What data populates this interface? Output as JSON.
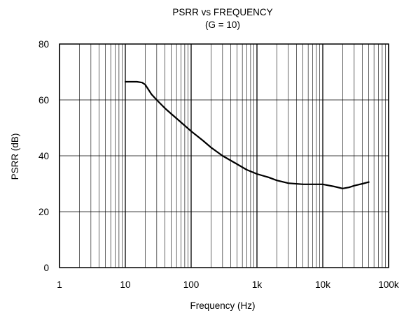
{
  "chart_data": {
    "type": "line",
    "title": "PSRR vs FREQUENCY",
    "subtitle": "(G = 10)",
    "xlabel": "Frequency (Hz)",
    "ylabel": "PSRR (dB)",
    "x_scale": "log",
    "xlim": [
      1,
      100000
    ],
    "ylim": [
      0,
      80
    ],
    "x_ticks": [
      {
        "value": 1,
        "label": "1"
      },
      {
        "value": 10,
        "label": "10"
      },
      {
        "value": 100,
        "label": "100"
      },
      {
        "value": 1000,
        "label": "1k"
      },
      {
        "value": 10000,
        "label": "10k"
      },
      {
        "value": 100000,
        "label": "100k"
      }
    ],
    "y_ticks": [
      {
        "value": 0,
        "label": "0"
      },
      {
        "value": 20,
        "label": "20"
      },
      {
        "value": 40,
        "label": "40"
      },
      {
        "value": 60,
        "label": "60"
      },
      {
        "value": 80,
        "label": "80"
      }
    ],
    "grid": true,
    "series": [
      {
        "x": [
          10,
          15,
          18,
          20,
          22,
          25,
          30,
          40,
          50,
          70,
          100,
          150,
          200,
          300,
          500,
          700,
          1000,
          1500,
          2000,
          3000,
          5000,
          7000,
          10000,
          15000,
          20000,
          25000,
          30000,
          40000,
          50000
        ],
        "y": [
          66.5,
          66.5,
          66.2,
          65.5,
          64,
          62,
          60,
          57,
          55,
          52,
          48.8,
          45.5,
          43,
          40,
          37,
          35,
          33.5,
          32.3,
          31.2,
          30.2,
          29.8,
          29.8,
          29.8,
          29,
          28.3,
          28.7,
          29.3,
          30,
          30.6
        ]
      }
    ]
  }
}
